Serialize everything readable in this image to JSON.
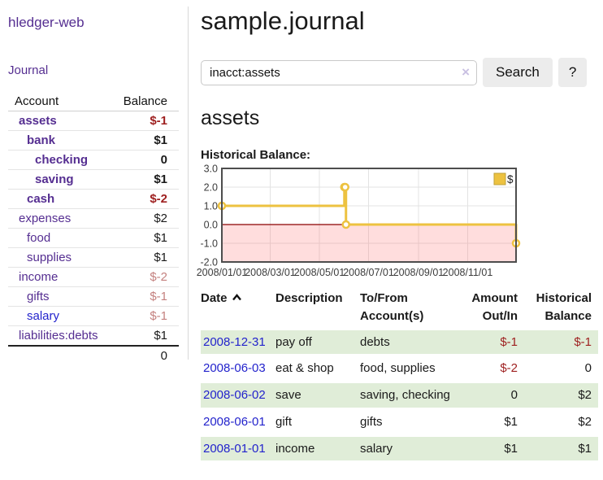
{
  "colors": {
    "link_visited": "#552E91",
    "link_unvisited": "#2323CC",
    "negative": "#9E1F1F",
    "negative_soft": "#C4817F",
    "row_highlight": "#E0EDD8",
    "chart_line": "#EDC240",
    "chart_zero_line": "#8B0000",
    "chart_negative_fill": "rgba(255,100,100,0.22)"
  },
  "sidebar": {
    "app_title": "hledger-web",
    "nav": {
      "journal_label": "Journal"
    },
    "accounts": {
      "headers": [
        "Account",
        "Balance"
      ],
      "rows": [
        {
          "account": "assets",
          "balance": "$-1",
          "depth": 1,
          "bold": true,
          "balance_style": "negative",
          "link_style": "visited"
        },
        {
          "account": "bank",
          "balance": "$1",
          "depth": 2,
          "bold": true,
          "balance_style": "normal",
          "link_style": "visited"
        },
        {
          "account": "checking",
          "balance": "0",
          "depth": 3,
          "bold": true,
          "balance_style": "normal",
          "link_style": "visited"
        },
        {
          "account": "saving",
          "balance": "$1",
          "depth": 3,
          "bold": true,
          "balance_style": "normal",
          "link_style": "visited"
        },
        {
          "account": "cash",
          "balance": "$-2",
          "depth": 2,
          "bold": true,
          "balance_style": "negative",
          "link_style": "visited"
        },
        {
          "account": "expenses",
          "balance": "$2",
          "depth": 1,
          "bold": false,
          "balance_style": "normal",
          "link_style": "visited"
        },
        {
          "account": "food",
          "balance": "$1",
          "depth": 2,
          "bold": false,
          "balance_style": "normal",
          "link_style": "visited"
        },
        {
          "account": "supplies",
          "balance": "$1",
          "depth": 2,
          "bold": false,
          "balance_style": "normal",
          "link_style": "visited"
        },
        {
          "account": "income",
          "balance": "$-2",
          "depth": 1,
          "bold": false,
          "balance_style": "negative-soft",
          "link_style": "visited"
        },
        {
          "account": "gifts",
          "balance": "$-1",
          "depth": 2,
          "bold": false,
          "balance_style": "negative-soft",
          "link_style": "visited"
        },
        {
          "account": "salary",
          "balance": "$-1",
          "depth": 2,
          "bold": false,
          "balance_style": "negative-soft",
          "link_style": "unvisited"
        },
        {
          "account": "liabilities:debts",
          "balance": "$1",
          "depth": 1,
          "bold": false,
          "balance_style": "normal",
          "link_style": "visited"
        }
      ],
      "total": "0"
    }
  },
  "main": {
    "title": "sample.journal",
    "search": {
      "value": "inacct:assets",
      "clear_icon": "×",
      "search_button": "Search",
      "help_button": "?"
    },
    "account_heading": "assets",
    "chart_title": "Historical Balance:",
    "register": {
      "headers": [
        {
          "line1": "Date",
          "line2": "",
          "align": "left",
          "sortable": true,
          "sort": "asc"
        },
        {
          "line1": "Description",
          "line2": "",
          "align": "left",
          "sortable": false
        },
        {
          "line1": "To/From",
          "line2": "Account(s)",
          "align": "left",
          "sortable": false
        },
        {
          "line1": "Amount",
          "line2": "Out/In",
          "align": "right",
          "sortable": false
        },
        {
          "line1": "Historical",
          "line2": "Balance",
          "align": "right",
          "sortable": false
        }
      ],
      "rows": [
        {
          "date": "2008-12-31",
          "description": "pay off",
          "accounts": "debts",
          "amount": "$-1",
          "amount_style": "negative",
          "balance": "$-1",
          "balance_style": "negative",
          "highlighted": true
        },
        {
          "date": "2008-06-03",
          "description": "eat & shop",
          "accounts": "food, supplies",
          "amount": "$-2",
          "amount_style": "negative",
          "balance": "0",
          "balance_style": "normal",
          "highlighted": false
        },
        {
          "date": "2008-06-02",
          "description": "save",
          "accounts": "saving, checking",
          "amount": "0",
          "amount_style": "normal",
          "balance": "$2",
          "balance_style": "normal",
          "highlighted": true
        },
        {
          "date": "2008-06-01",
          "description": "gift",
          "accounts": "gifts",
          "amount": "$1",
          "amount_style": "normal",
          "balance": "$2",
          "balance_style": "normal",
          "highlighted": false
        },
        {
          "date": "2008-01-01",
          "description": "income",
          "accounts": "salary",
          "amount": "$1",
          "amount_style": "normal",
          "balance": "$1",
          "balance_style": "normal",
          "highlighted": true
        }
      ]
    }
  },
  "chart_data": {
    "type": "line",
    "step": true,
    "title": "Historical Balance:",
    "series": [
      {
        "name": "$",
        "color": "#EDC240",
        "points": [
          [
            "2008-01-01",
            1
          ],
          [
            "2008-06-01",
            2
          ],
          [
            "2008-06-02",
            2
          ],
          [
            "2008-06-03",
            0
          ],
          [
            "2008-12-31",
            -1
          ]
        ]
      }
    ],
    "ylim": [
      -2,
      3
    ],
    "ytick_labels": [
      "3.0",
      "2.0",
      "1.0",
      "0.0",
      "-1.0",
      "-2.0"
    ],
    "yticks": [
      3.0,
      2.0,
      1.0,
      0.0,
      -1.0,
      -2.0
    ],
    "xtick_labels": [
      "2008/01/01",
      "2008/03/01",
      "2008/05/01",
      "2008/07/01",
      "2008/09/01",
      "2008/11/01"
    ],
    "x_range": [
      "2008-01-01",
      "2008-12-31"
    ],
    "grid": true,
    "legend": {
      "label": "$",
      "position": "top-right"
    },
    "negative_region_shaded": true,
    "zero_line": true
  }
}
